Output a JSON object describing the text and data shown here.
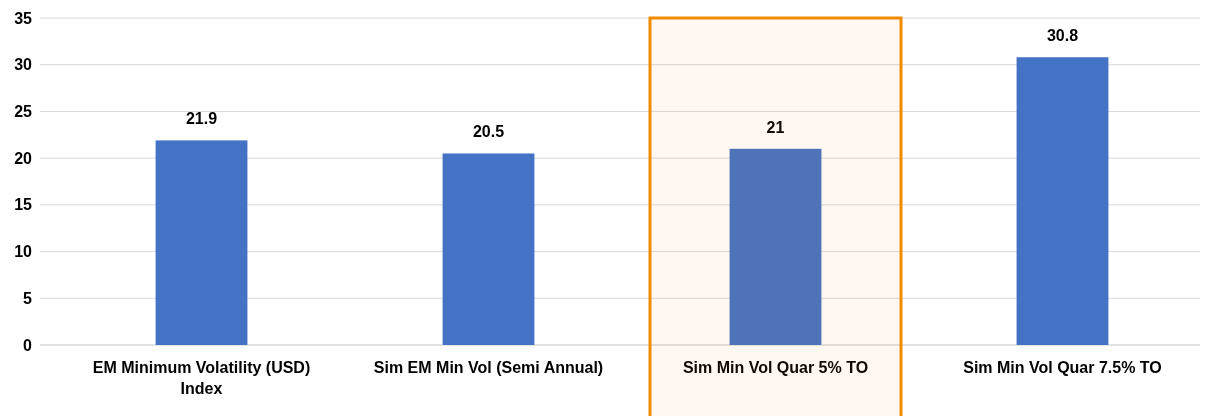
{
  "chart_data": {
    "type": "bar",
    "categories": [
      "EM Minimum Volatility (USD) Index",
      "Sim EM Min Vol (Semi Annual)",
      "Sim Min Vol Quar 5% TO",
      "Sim Min Vol Quar 7.5% TO"
    ],
    "values": [
      21.9,
      20.5,
      21,
      30.8
    ],
    "color": "#4472c4",
    "ylim": [
      0,
      35
    ],
    "yticks": [
      0,
      5,
      10,
      15,
      20,
      25,
      30,
      35
    ],
    "grid": "y",
    "data_labels": true,
    "bands": [
      {
        "axis": "x",
        "from": "Sim Min Vol Quar 5% TO",
        "to": "Sim Min Vol Quar 5% TO",
        "color": "#f08c00"
      }
    ]
  }
}
